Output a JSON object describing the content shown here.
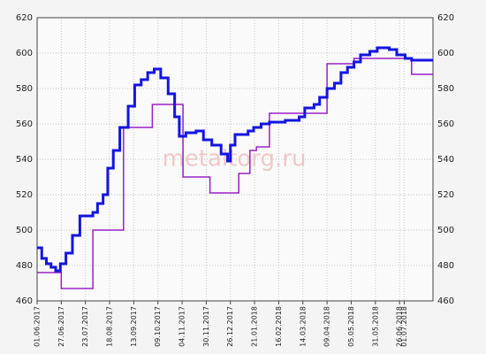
{
  "chart_data": {
    "type": "line",
    "step": "post",
    "watermark": "metaltorg.ru",
    "xlim": [
      "2017-06-01",
      "2018-08-01"
    ],
    "xticks": [
      {
        "value": "2017-06-01",
        "label": "01.06.2017"
      },
      {
        "value": "2017-06-27",
        "label": "27.06.2017"
      },
      {
        "value": "2017-07-23",
        "label": "23.07.2017"
      },
      {
        "value": "2017-08-18",
        "label": "18.08.2017"
      },
      {
        "value": "2017-09-13",
        "label": "13.09.2017"
      },
      {
        "value": "2017-10-09",
        "label": "09.10.2017"
      },
      {
        "value": "2017-11-04",
        "label": "04.11.2017"
      },
      {
        "value": "2017-11-30",
        "label": "30.11.2017"
      },
      {
        "value": "2017-12-26",
        "label": "26.12.2017"
      },
      {
        "value": "2018-01-21",
        "label": "21.01.2018"
      },
      {
        "value": "2018-02-16",
        "label": "16.02.2018"
      },
      {
        "value": "2018-03-14",
        "label": "14.03.2018"
      },
      {
        "value": "2018-04-09",
        "label": "09.04.2018"
      },
      {
        "value": "2018-05-05",
        "label": "05.05.2018"
      },
      {
        "value": "2018-05-31",
        "label": "31.05.2018"
      },
      {
        "value": "2018-06-26",
        "label": "26.06.2018"
      },
      {
        "value": "2018-07-01",
        "label": "01.07.2018"
      }
    ],
    "ylim": [
      460,
      620
    ],
    "yticks": [
      460,
      480,
      500,
      520,
      540,
      560,
      580,
      600,
      620
    ],
    "grid": true,
    "series": [
      {
        "color": "#9b1fc8",
        "x": [
          "2017-06-01",
          "2017-06-27",
          "2017-07-31",
          "2017-09-02",
          "2017-10-03",
          "2017-11-05",
          "2017-12-04",
          "2018-01-04",
          "2018-01-16",
          "2018-01-23",
          "2018-02-06",
          "2018-04-09",
          "2018-05-08",
          "2018-07-09",
          "2018-08-01"
        ],
        "values": [
          476,
          467,
          500,
          558,
          571,
          530,
          521,
          532,
          545,
          547,
          566,
          594,
          597,
          588,
          588
        ]
      },
      {
        "color": "#1414e0",
        "x": [
          "2017-06-01",
          "2017-06-06",
          "2017-06-11",
          "2017-06-16",
          "2017-06-21",
          "2017-06-26",
          "2017-07-02",
          "2017-07-09",
          "2017-07-17",
          "2017-07-31",
          "2017-08-05",
          "2017-08-11",
          "2017-08-16",
          "2017-08-22",
          "2017-08-29",
          "2017-09-07",
          "2017-09-14",
          "2017-09-21",
          "2017-09-28",
          "2017-10-05",
          "2017-10-12",
          "2017-10-20",
          "2017-10-27",
          "2017-11-01",
          "2017-11-08",
          "2017-11-19",
          "2017-11-27",
          "2017-12-06",
          "2017-12-16",
          "2017-12-23",
          "2017-12-26",
          "2017-12-31",
          "2018-01-14",
          "2018-01-20",
          "2018-01-28",
          "2018-02-06",
          "2018-02-23",
          "2018-03-10",
          "2018-03-16",
          "2018-03-26",
          "2018-04-01",
          "2018-04-09",
          "2018-04-17",
          "2018-04-24",
          "2018-05-01",
          "2018-05-08",
          "2018-05-15",
          "2018-05-25",
          "2018-06-02",
          "2018-06-15",
          "2018-06-23",
          "2018-07-02",
          "2018-07-09",
          "2018-08-01"
        ],
        "values": [
          490,
          484,
          481,
          479,
          477,
          481,
          487,
          497,
          508,
          510,
          515,
          520,
          535,
          545,
          558,
          570,
          582,
          585,
          589,
          591,
          586,
          577,
          564,
          553,
          555,
          556,
          551,
          548,
          543,
          539,
          548,
          554,
          556,
          558,
          560,
          561,
          562,
          564,
          569,
          571,
          575,
          580,
          583,
          589,
          592,
          595,
          599,
          601,
          603,
          602,
          599,
          597,
          596,
          596
        ]
      }
    ]
  }
}
